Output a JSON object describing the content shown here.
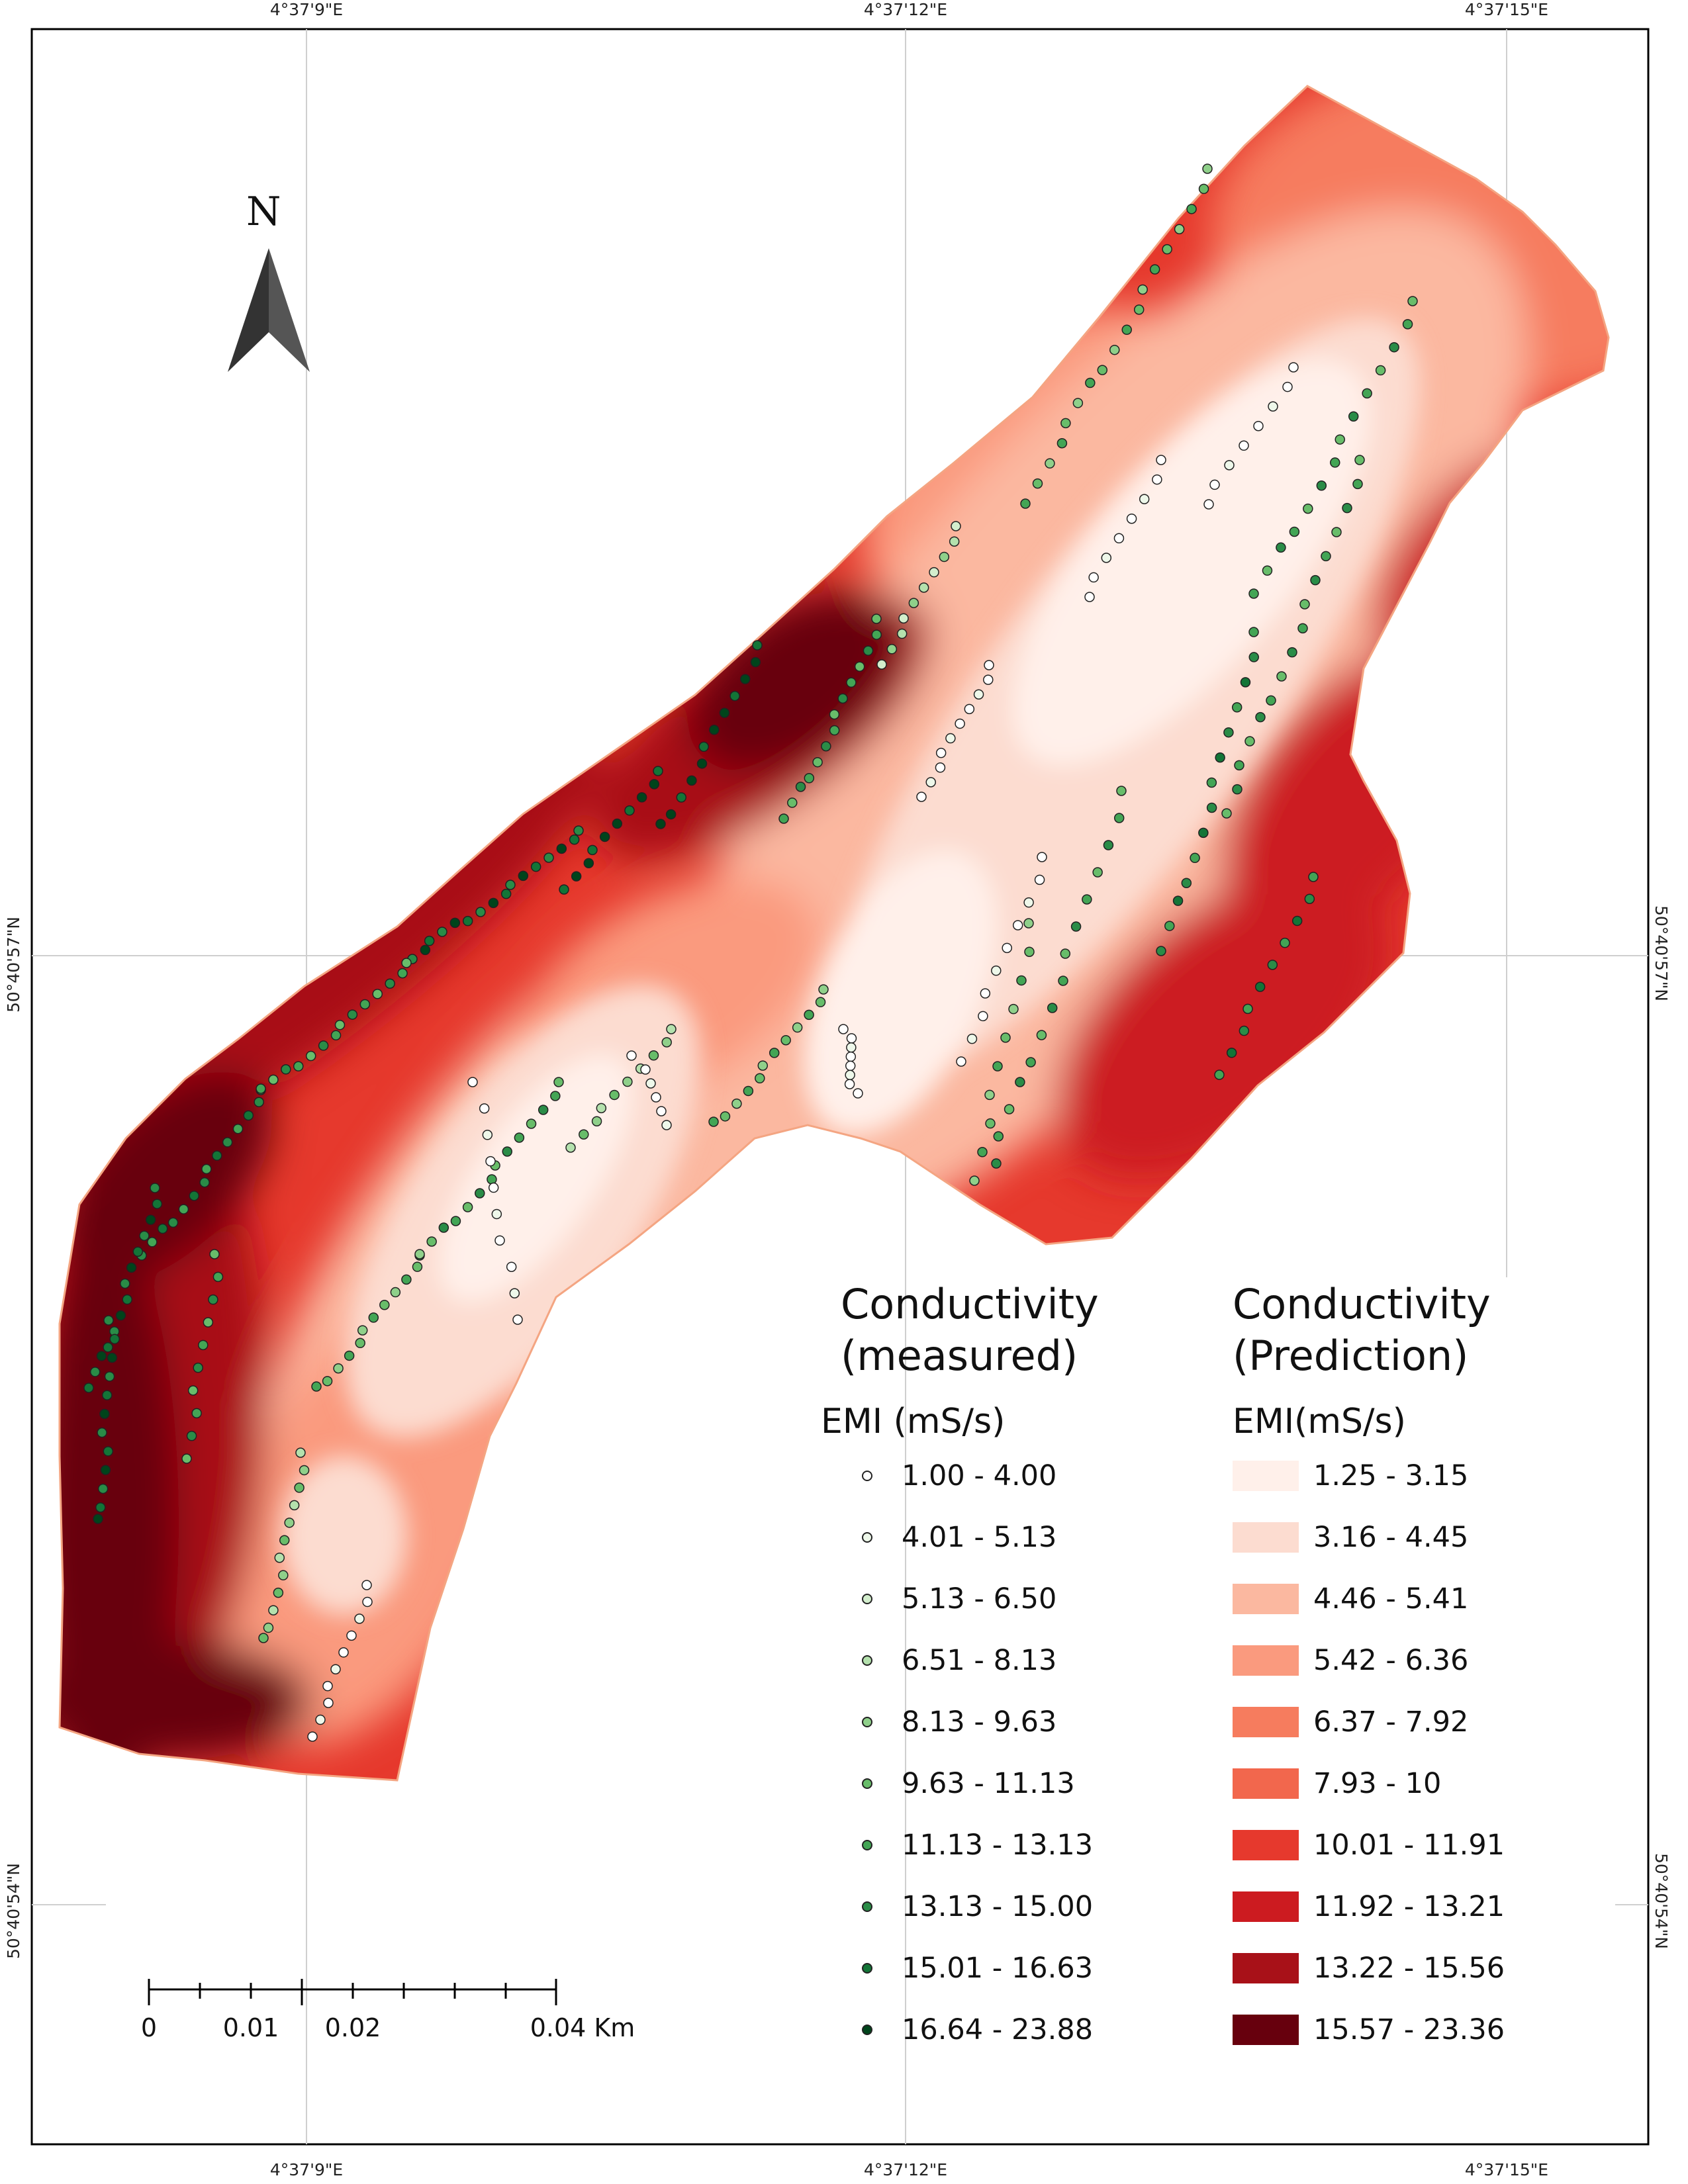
{
  "coordinates": {
    "top": [
      "4°37'9\"E",
      "4°37'12\"E",
      "4°37'15\"E"
    ],
    "bottom": [
      "4°37'9\"E",
      "4°37'12\"E",
      "4°37'15\"E"
    ],
    "left": [
      "50°40'57\"N",
      "50°40'54\"N"
    ],
    "right": [
      "50°40'57\"N",
      "50°40'54\"N"
    ]
  },
  "north_arrow": {
    "label": "N"
  },
  "scale_bar": {
    "labels": [
      "0",
      "0.01",
      "0.02",
      "0.04 Km"
    ]
  },
  "legend_measured": {
    "title": "Conductivity\n(measured)",
    "subtitle": "EMI (mS/s)",
    "classes": [
      {
        "label": "1.00 - 4.00",
        "color": "#ffffff"
      },
      {
        "label": "4.01 - 5.13",
        "color": "#eef8ea"
      },
      {
        "label": "5.13 - 6.50",
        "color": "#d3eecd"
      },
      {
        "label": "6.51 - 8.13",
        "color": "#b4e1ad"
      },
      {
        "label": "8.13 - 9.63",
        "color": "#8fd08a"
      },
      {
        "label": "9.63 - 11.13",
        "color": "#68bd6a"
      },
      {
        "label": "11.13 - 13.13",
        "color": "#43a555"
      },
      {
        "label": "13.13 - 15.00",
        "color": "#2a8c47"
      },
      {
        "label": "15.01 - 16.63",
        "color": "#137537"
      },
      {
        "label": "16.64 - 23.88",
        "color": "#00441b"
      }
    ]
  },
  "legend_prediction": {
    "title": "Conductivity\n(Prediction)",
    "subtitle": "EMI(mS/s)",
    "classes": [
      {
        "label": "1.25 - 3.15",
        "color": "#fff0ea"
      },
      {
        "label": "3.16 - 4.45",
        "color": "#fcdcd0"
      },
      {
        "label": "4.46 - 5.41",
        "color": "#fbb8a0"
      },
      {
        "label": "5.42 - 6.36",
        "color": "#fa9a7e"
      },
      {
        "label": "6.37 - 7.92",
        "color": "#f67c5e"
      },
      {
        "label": "7.93 - 10",
        "color": "#f2674d"
      },
      {
        "label": "10.01 - 11.91",
        "color": "#e6392d"
      },
      {
        "label": "11.92 - 13.21",
        "color": "#cc1b20"
      },
      {
        "label": "13.22 - 15.56",
        "color": "#a81118"
      },
      {
        "label": "15.57 - 23.36",
        "color": "#67000d"
      }
    ]
  }
}
